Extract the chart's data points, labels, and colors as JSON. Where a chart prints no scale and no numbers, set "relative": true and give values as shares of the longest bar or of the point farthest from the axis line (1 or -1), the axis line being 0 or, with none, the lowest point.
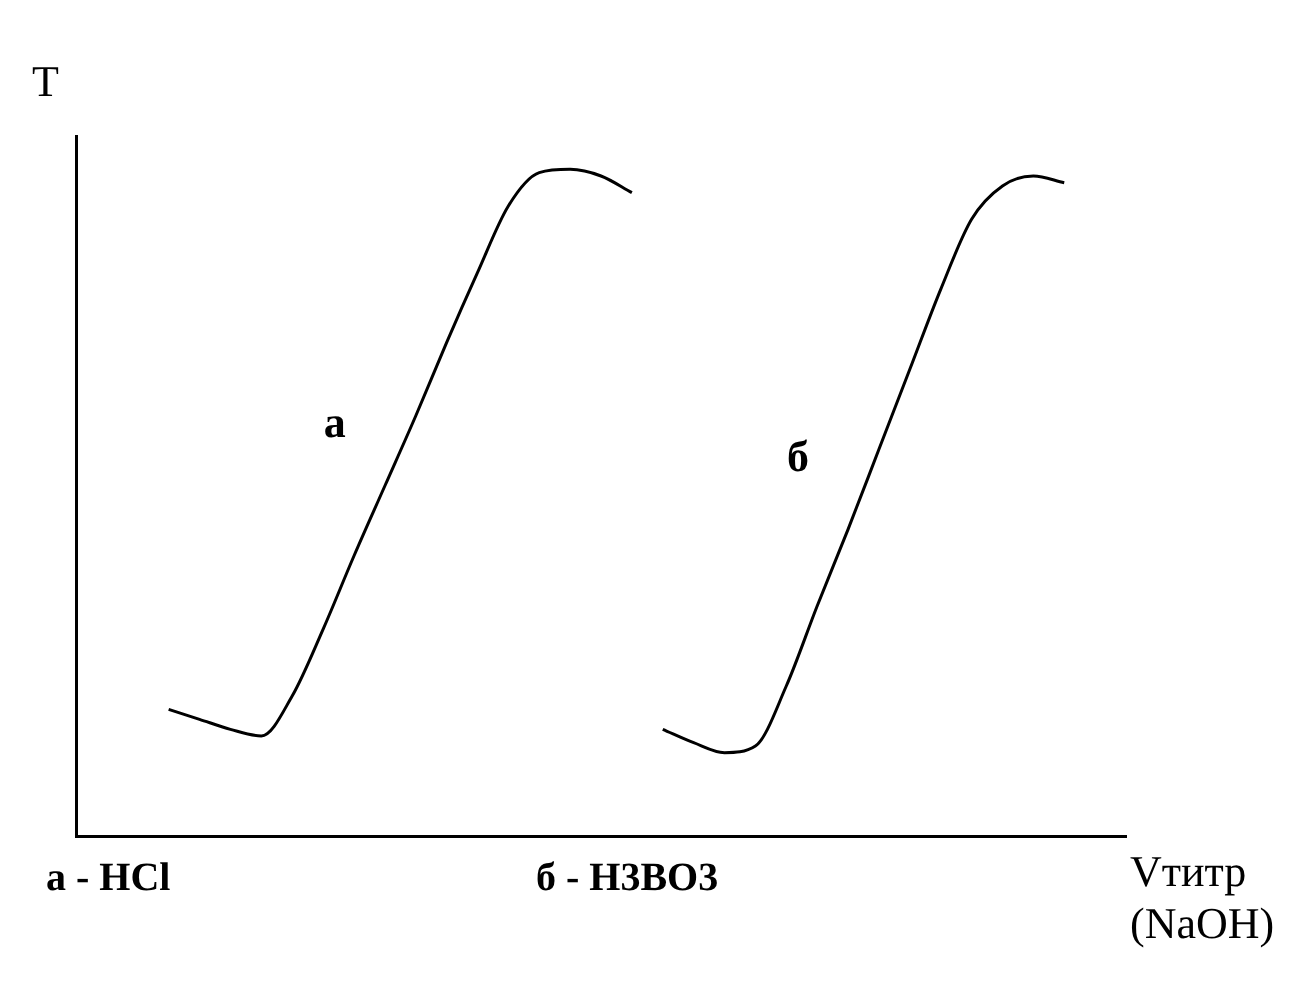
{
  "chart_data": {
    "type": "line",
    "relative": true,
    "ylabel": "T",
    "xlabel": "Vтитр\n(NaOH)",
    "categories": [
      null,
      null,
      null,
      null,
      null,
      null,
      null,
      null,
      null,
      null,
      null,
      null,
      null,
      null,
      null,
      null,
      null,
      null,
      null,
      null,
      null,
      null,
      null,
      null,
      null,
      null,
      null,
      null,
      null,
      null,
      null,
      null,
      null,
      null,
      null
    ],
    "series": [
      {
        "name": "а",
        "color": "#000000",
        "values": [
          null,
          null,
          null,
          0.19,
          0.175,
          0.16,
          0.15,
          0.21,
          0.31,
          0.42,
          0.525,
          0.63,
          0.74,
          0.845,
          0.945,
          0.995,
          1,
          0.99,
          0.965,
          null,
          null,
          null,
          null,
          null,
          null,
          null,
          null,
          null,
          null,
          null,
          null,
          null,
          null,
          null,
          null
        ]
      },
      {
        "name": "б",
        "color": "#000000",
        "values": [
          null,
          null,
          null,
          null,
          null,
          null,
          null,
          null,
          null,
          null,
          null,
          null,
          null,
          null,
          null,
          null,
          null,
          null,
          null,
          0.16,
          0.14,
          0.125,
          0.135,
          0.225,
          0.345,
          0.46,
          0.58,
          0.7,
          0.82,
          0.925,
          0.975,
          0.99,
          0.98,
          null,
          null
        ]
      }
    ],
    "annotations": [
      "а - HCl",
      "б - H3BO3"
    ],
    "marker": "none",
    "line_style": "solid",
    "grid": false,
    "legend": false
  }
}
